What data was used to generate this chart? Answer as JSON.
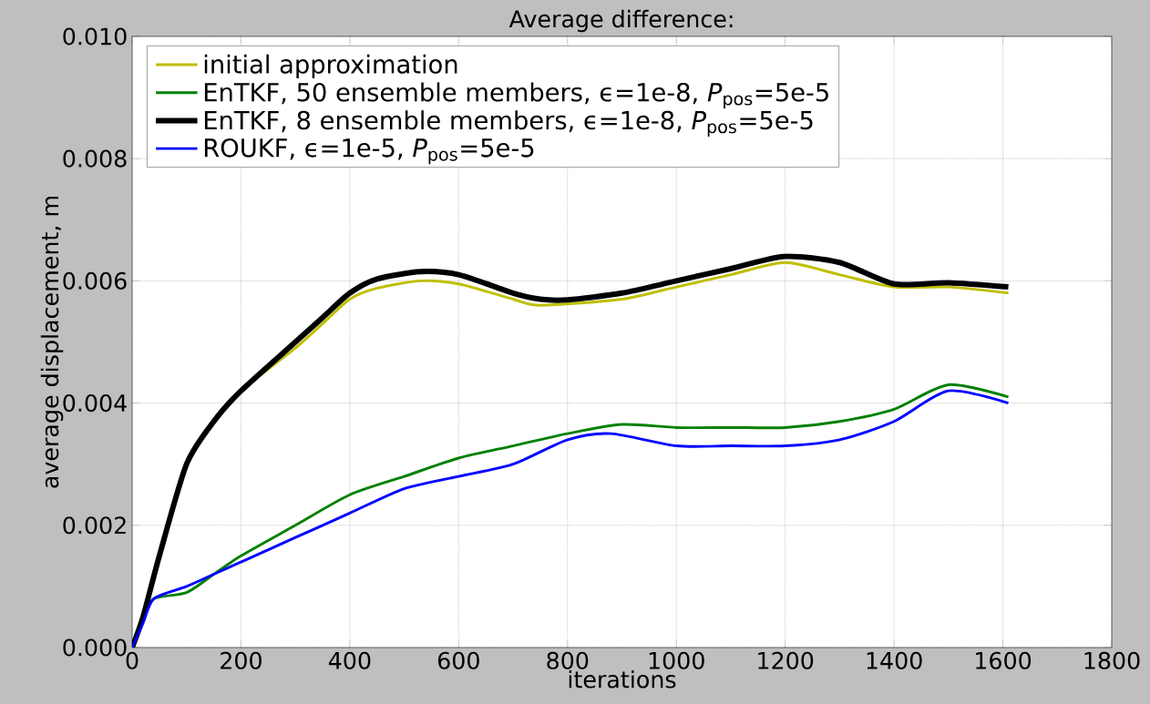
{
  "chart_data": {
    "type": "line",
    "title": "Average difference:",
    "xlabel": "iterations",
    "ylabel": "average displacement, m",
    "xlim": [
      0,
      1800
    ],
    "xticks": [
      0,
      200,
      400,
      600,
      800,
      1000,
      1200,
      1400,
      1600,
      1800
    ],
    "ylim": [
      0,
      0.01
    ],
    "yticks": [
      {
        "value": 0,
        "label": "0.000"
      },
      {
        "value": 0.002,
        "label": "0.002"
      },
      {
        "value": 0.004,
        "label": "0.004"
      },
      {
        "value": 0.006,
        "label": "0.006"
      },
      {
        "value": 0.008,
        "label": "0.008"
      },
      {
        "value": 0.01,
        "label": "0.010"
      }
    ],
    "grid": true,
    "legend": "top left",
    "series": [
      {
        "name": "initial approximation",
        "color": "#bfbf00",
        "x": [
          150,
          200,
          300,
          350,
          400,
          450,
          530,
          600,
          700,
          750,
          900,
          1000,
          1100,
          1200,
          1300,
          1400,
          1500,
          1610
        ],
        "values": [
          0.0037,
          0.0042,
          0.0049,
          0.0053,
          0.0057,
          0.00588,
          0.006,
          0.00595,
          0.0057,
          0.0056,
          0.0057,
          0.0059,
          0.0061,
          0.0063,
          0.0061,
          0.0059,
          0.0059,
          0.0058
        ]
      },
      {
        "name": "EnTKF, 50 ensemble members, ϵ=1e-8, *P*$_{pos}$=5e-5",
        "color": "#008000",
        "x": [
          0,
          20,
          40,
          100,
          150,
          200,
          300,
          400,
          500,
          600,
          700,
          800,
          900,
          1000,
          1100,
          1200,
          1300,
          1400,
          1500,
          1610
        ],
        "values": [
          0,
          0.0005,
          0.0008,
          0.0009,
          0.0012,
          0.0015,
          0.002,
          0.0025,
          0.0028,
          0.0031,
          0.0033,
          0.0035,
          0.00365,
          0.0036,
          0.0036,
          0.0036,
          0.0037,
          0.0039,
          0.0043,
          0.0041
        ]
      },
      {
        "name": "EnTKF, 8 ensemble members, ϵ=1e-8, *P*$_{pos}$=5e-5",
        "color": "#000000",
        "x": [
          0,
          20,
          50,
          100,
          150,
          200,
          300,
          350,
          400,
          450,
          530,
          600,
          700,
          750,
          800,
          900,
          1000,
          1100,
          1200,
          1300,
          1400,
          1500,
          1610
        ],
        "values": [
          0,
          0.0005,
          0.0015,
          0.003,
          0.0037,
          0.0042,
          0.005,
          0.0054,
          0.0058,
          0.00603,
          0.00615,
          0.0061,
          0.0058,
          0.0057,
          0.00569,
          0.0058,
          0.006,
          0.0062,
          0.0064,
          0.0063,
          0.00595,
          0.00597,
          0.0059
        ]
      },
      {
        "name": "ROUKF, ϵ=1e-5, *P*$_{pos}$=5e-5",
        "color": "#0000ff",
        "x": [
          0,
          20,
          40,
          100,
          150,
          200,
          300,
          400,
          500,
          600,
          700,
          800,
          880,
          1000,
          1100,
          1200,
          1300,
          1400,
          1500,
          1610
        ],
        "values": [
          0,
          0.0004,
          0.0008,
          0.001,
          0.0012,
          0.0014,
          0.0018,
          0.0022,
          0.0026,
          0.0028,
          0.003,
          0.0034,
          0.0035,
          0.0033,
          0.0033,
          0.0033,
          0.0034,
          0.0037,
          0.0042,
          0.004
        ]
      }
    ]
  }
}
